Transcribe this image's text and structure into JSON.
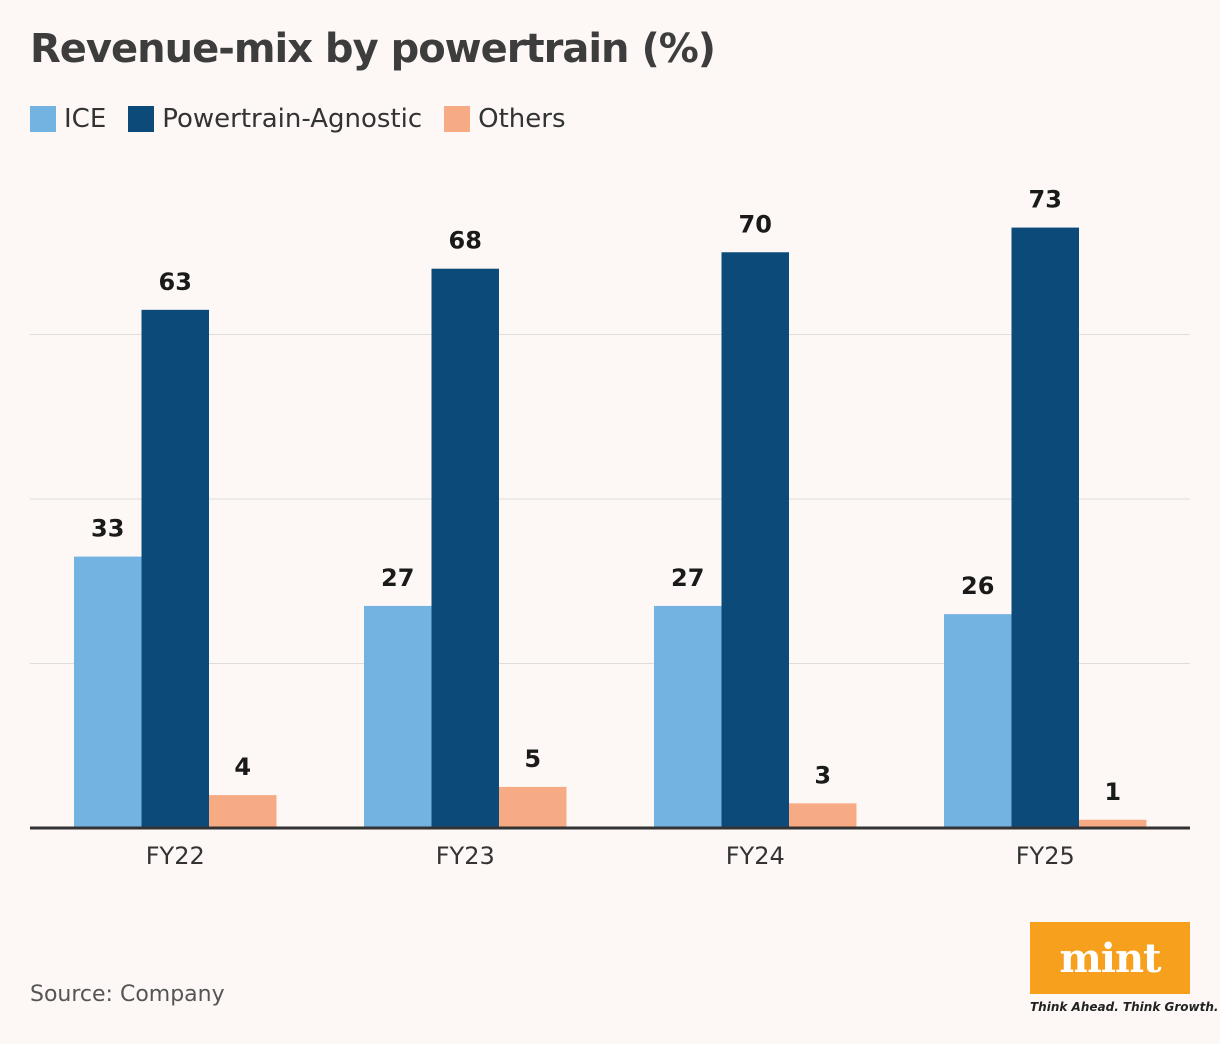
{
  "chart_data": {
    "type": "bar",
    "title": "Revenue-mix by powertrain (%)",
    "categories": [
      "FY22",
      "FY23",
      "FY24",
      "FY25"
    ],
    "series": [
      {
        "name": "ICE",
        "color": "#72b3e2",
        "values": [
          33,
          27,
          27,
          26
        ]
      },
      {
        "name": "Powertrain-Agnostic",
        "color": "#0c4a7a",
        "values": [
          63,
          68,
          70,
          73
        ]
      },
      {
        "name": "Others",
        "color": "#f7ab85",
        "values": [
          4,
          5,
          3,
          1
        ]
      }
    ],
    "ylim": [
      0,
      80
    ],
    "grid": true,
    "legend": "top-left",
    "data_labels": true
  },
  "source": "Source: Company",
  "logo": {
    "text": "mint",
    "tagline": "Think Ahead. Think Growth.",
    "color": "#f7a01e"
  }
}
